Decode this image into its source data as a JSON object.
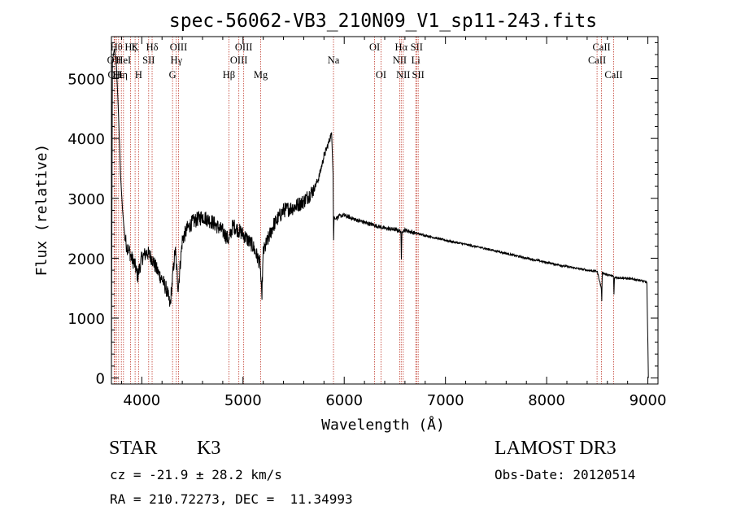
{
  "chart_data": {
    "type": "line",
    "title": "spec-56062-VB3_210N09_V1_sp11-243.fits",
    "xlabel": "Wavelength (Å)",
    "ylabel": "Flux (relative)",
    "xlim": [
      3700,
      9100
    ],
    "ylim": [
      -100,
      5700
    ],
    "x_ticks": [
      4000,
      5000,
      6000,
      7000,
      8000,
      9000
    ],
    "y_ticks": [
      0,
      1000,
      2000,
      3000,
      4000,
      5000
    ],
    "x_tick_labels": [
      "4000",
      "5000",
      "6000",
      "7000",
      "8000",
      "9000"
    ],
    "y_tick_labels": [
      "0",
      "1000",
      "2000",
      "3000",
      "4000",
      "5000"
    ],
    "spectrum_anchor_points": {
      "wavelength": [
        3700,
        3710,
        3730,
        3750,
        3770,
        3790,
        3810,
        3830,
        3850,
        3870,
        3900,
        3930,
        3960,
        4000,
        4050,
        4100,
        4150,
        4200,
        4250,
        4280,
        4300,
        4330,
        4360,
        4400,
        4450,
        4500,
        4550,
        4600,
        4700,
        4800,
        4860,
        4900,
        5000,
        5100,
        5170,
        5185,
        5200,
        5300,
        5400,
        5500,
        5600,
        5700,
        5750,
        5800,
        5850,
        5875,
        5890,
        5895,
        5900,
        5910,
        5950,
        6000,
        6100,
        6200,
        6300,
        6400,
        6500,
        6560,
        6565,
        6570,
        6600,
        6700,
        6800,
        7000,
        7200,
        7400,
        7600,
        7800,
        8000,
        8200,
        8400,
        8500,
        8540,
        8545,
        8550,
        8600,
        8660,
        8665,
        8670,
        8800,
        8900,
        8990,
        8998,
        9005
      ],
      "flux": [
        0,
        5300,
        5500,
        5200,
        4400,
        3400,
        2800,
        2400,
        2200,
        2150,
        2000,
        1900,
        1700,
        2000,
        2100,
        2000,
        1800,
        1650,
        1450,
        1200,
        1600,
        2150,
        1500,
        2300,
        2500,
        2600,
        2650,
        2700,
        2600,
        2450,
        2300,
        2550,
        2400,
        2200,
        1900,
        1300,
        2100,
        2550,
        2800,
        2850,
        2950,
        3150,
        3350,
        3700,
        3950,
        4100,
        3400,
        2300,
        2700,
        2650,
        2700,
        2720,
        2650,
        2600,
        2550,
        2500,
        2480,
        2450,
        1950,
        2450,
        2470,
        2420,
        2380,
        2300,
        2230,
        2160,
        2080,
        2000,
        1930,
        1860,
        1800,
        1780,
        1500,
        1300,
        1760,
        1720,
        1700,
        1400,
        1680,
        1660,
        1640,
        1600,
        800,
        0
      ]
    },
    "line_markers": [
      {
        "wl": 3727,
        "label": "OII",
        "row": 2
      },
      {
        "wl": 3734,
        "label": "OII",
        "row": 3
      },
      {
        "wl": 3750,
        "label": "Hθ",
        "row": 1
      },
      {
        "wl": 3771,
        "label": "Hε",
        "row": 3
      },
      {
        "wl": 3798,
        "label": "Hη",
        "row": 3
      },
      {
        "wl": 3819,
        "label": "HeI",
        "row": 2
      },
      {
        "wl": 3889,
        "label": "Hζ",
        "row": 1
      },
      {
        "wl": 3934,
        "label": "K",
        "row": 1
      },
      {
        "wl": 3968,
        "label": "H",
        "row": 3
      },
      {
        "wl": 4068,
        "label": "SII",
        "row": 2
      },
      {
        "wl": 4102,
        "label": "Hδ",
        "row": 1
      },
      {
        "wl": 4304,
        "label": "G",
        "row": 3
      },
      {
        "wl": 4341,
        "label": "Hγ",
        "row": 2
      },
      {
        "wl": 4363,
        "label": "OIII",
        "row": 1
      },
      {
        "wl": 4861,
        "label": "Hβ",
        "row": 3
      },
      {
        "wl": 4959,
        "label": "OIII",
        "row": 2
      },
      {
        "wl": 5007,
        "label": "OIII",
        "row": 1
      },
      {
        "wl": 5175,
        "label": "Mg",
        "row": 3
      },
      {
        "wl": 5894,
        "label": "Na",
        "row": 2
      },
      {
        "wl": 6300,
        "label": "OI",
        "row": 1
      },
      {
        "wl": 6364,
        "label": "OI",
        "row": 3
      },
      {
        "wl": 6548,
        "label": "NII",
        "row": 2
      },
      {
        "wl": 6563,
        "label": "Hα",
        "row": 1
      },
      {
        "wl": 6583,
        "label": "NII",
        "row": 3
      },
      {
        "wl": 6707,
        "label": "Li",
        "row": 2
      },
      {
        "wl": 6716,
        "label": "SII",
        "row": 1
      },
      {
        "wl": 6731,
        "label": "SII",
        "row": 3
      },
      {
        "wl": 8498,
        "label": "CaII",
        "row": 2
      },
      {
        "wl": 8542,
        "label": "CaII",
        "row": 1
      },
      {
        "wl": 8662,
        "label": "CaII",
        "row": 3
      }
    ]
  },
  "footer": {
    "object_class": "STAR",
    "subclass": "K3",
    "survey": "LAMOST DR3",
    "redshift_text": "cz = -21.9 ± 28.2 km/s",
    "obs_date_text": "Obs-Date: 20120514",
    "coords_text": "RA = 210.72273, DEC =  11.34993"
  }
}
